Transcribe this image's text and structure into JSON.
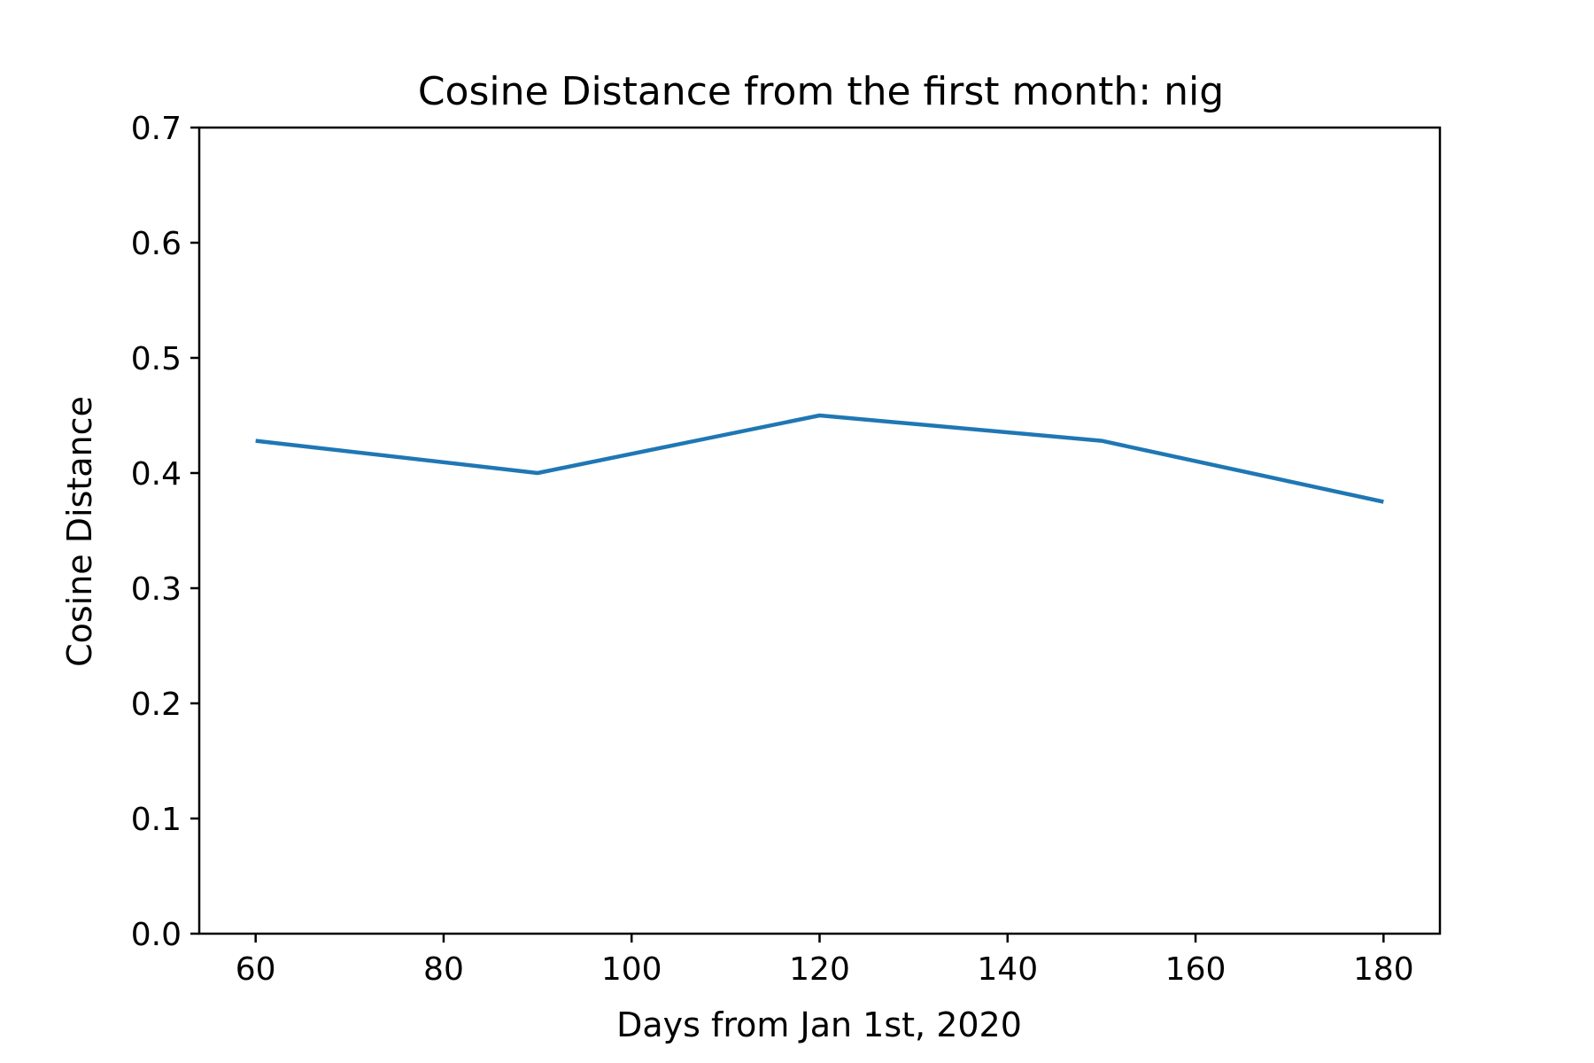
{
  "chart_data": {
    "type": "line",
    "title": "Cosine Distance from the first month: nig",
    "xlabel": "Days from Jan 1st, 2020",
    "ylabel": "Cosine Distance",
    "xlim": [
      54,
      186
    ],
    "ylim": [
      0.0,
      0.7
    ],
    "x_ticks": [
      60,
      80,
      100,
      120,
      140,
      160,
      180
    ],
    "x_tick_labels": [
      "60",
      "80",
      "100",
      "120",
      "140",
      "160",
      "180"
    ],
    "y_ticks": [
      0.0,
      0.1,
      0.2,
      0.3,
      0.4,
      0.5,
      0.6,
      0.7
    ],
    "y_tick_labels": [
      "0.0",
      "0.1",
      "0.2",
      "0.3",
      "0.4",
      "0.5",
      "0.6",
      "0.7"
    ],
    "grid": false,
    "series": [
      {
        "color": "#1f77b4",
        "x": [
          60,
          90,
          120,
          150,
          180
        ],
        "y": [
          0.428,
          0.4,
          0.45,
          0.428,
          0.375
        ]
      }
    ]
  }
}
